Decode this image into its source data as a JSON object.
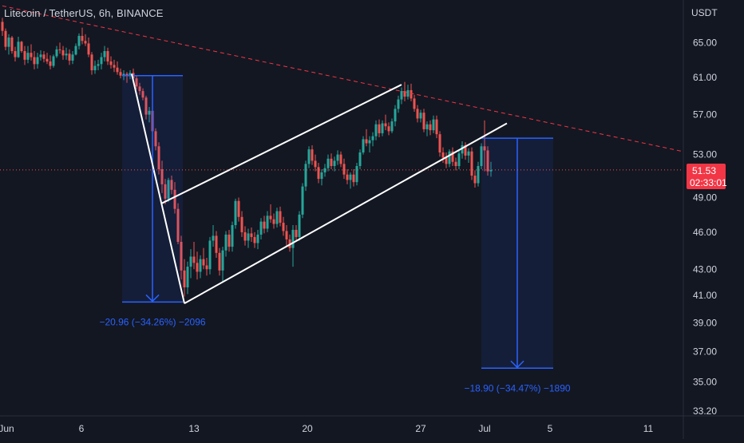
{
  "header": {
    "title": "Litecoin / TetherUS, 6h, BINANCE",
    "currency": "USDT"
  },
  "price_badge": {
    "price": "51.53",
    "countdown": "02:33:01",
    "color": "#f23645"
  },
  "colors": {
    "background": "#131722",
    "up": "#26a69a",
    "down": "#ef5350",
    "measure": "#2962ff",
    "pattern": "#ffffff",
    "resistance": "#f23645",
    "axis_text": "#d1d4dc"
  },
  "chart_data": {
    "type": "candlestick",
    "symbol": "LTCUSDT",
    "interval": "6h",
    "exchange": "BINANCE",
    "y_axis": {
      "scale": "log",
      "ticks": [
        "65.00",
        "61.00",
        "57.00",
        "53.00",
        "49.00",
        "46.00",
        "43.00",
        "41.00",
        "39.00",
        "37.00",
        "35.00",
        "33.20"
      ],
      "range": [
        32.8,
        70
      ]
    },
    "x_axis": {
      "ticks": [
        "Jun",
        "6",
        "13",
        "20",
        "27",
        "Jul",
        "5",
        "11"
      ]
    },
    "last_price": 51.53,
    "resistance_line": {
      "from": [
        0,
        69.5
      ],
      "to": [
        213,
        53.3
      ],
      "style": "dashed"
    },
    "channel": {
      "upper": {
        "from": [
          50,
          48.5
        ],
        "to": [
          125,
          60.2
        ]
      },
      "lower": {
        "from": [
          57,
          40.4
        ],
        "to": [
          158,
          56.1
        ]
      }
    },
    "left_leg": {
      "from": [
        40.5,
        61.4
      ],
      "to": [
        57,
        40.4
      ]
    },
    "measures": [
      {
        "label": "−20.96 (−34.26%) −2096",
        "from_x": 37.5,
        "to_x": 56.5,
        "top": 61.2,
        "bottom": 40.5
      },
      {
        "label": "−18.90 (−34.47%) −1890",
        "from_x": 150,
        "to_x": 172.5,
        "top": 54.6,
        "bottom": 35.9
      }
    ],
    "candles": [
      [
        67.5,
        68.0,
        65.8,
        66.4
      ],
      [
        66.4,
        66.7,
        64.1,
        64.5
      ],
      [
        64.5,
        66.0,
        63.6,
        65.6
      ],
      [
        65.6,
        65.8,
        63.7,
        64.0
      ],
      [
        64.0,
        64.5,
        62.8,
        63.3
      ],
      [
        63.3,
        65.7,
        63.2,
        65.1
      ],
      [
        65.1,
        65.2,
        63.8,
        64.0
      ],
      [
        64.0,
        64.6,
        62.4,
        63.0
      ],
      [
        63.0,
        64.6,
        62.6,
        63.8
      ],
      [
        63.8,
        64.8,
        62.9,
        63.3
      ],
      [
        63.3,
        64.0,
        61.9,
        62.5
      ],
      [
        62.5,
        63.8,
        62.0,
        63.3
      ],
      [
        63.3,
        64.1,
        62.9,
        63.6
      ],
      [
        63.6,
        64.0,
        62.7,
        63.1
      ],
      [
        63.1,
        63.8,
        62.5,
        62.8
      ],
      [
        62.8,
        63.5,
        61.9,
        62.3
      ],
      [
        62.3,
        63.6,
        62.1,
        63.4
      ],
      [
        63.4,
        64.6,
        63.2,
        64.2
      ],
      [
        64.2,
        65.0,
        63.7,
        64.1
      ],
      [
        64.1,
        64.6,
        63.0,
        63.5
      ],
      [
        63.5,
        64.4,
        63.0,
        63.7
      ],
      [
        63.7,
        64.2,
        62.4,
        62.9
      ],
      [
        62.9,
        64.0,
        62.5,
        63.6
      ],
      [
        63.6,
        64.9,
        63.5,
        64.6
      ],
      [
        64.6,
        66.1,
        64.2,
        65.8
      ],
      [
        65.8,
        66.8,
        64.8,
        65.2
      ],
      [
        65.2,
        66.0,
        64.6,
        64.9
      ],
      [
        64.9,
        65.6,
        63.3,
        63.6
      ],
      [
        63.6,
        63.9,
        61.3,
        61.8
      ],
      [
        61.8,
        62.9,
        61.4,
        62.3
      ],
      [
        62.3,
        63.0,
        61.8,
        62.5
      ],
      [
        62.5,
        63.8,
        61.9,
        63.3
      ],
      [
        63.3,
        64.6,
        62.8,
        64.0
      ],
      [
        64.0,
        64.4,
        62.4,
        62.8
      ],
      [
        62.8,
        63.4,
        62.0,
        62.4
      ],
      [
        62.4,
        63.0,
        61.6,
        62.1
      ],
      [
        62.1,
        62.8,
        61.3,
        61.6
      ],
      [
        61.6,
        62.0,
        60.9,
        61.2
      ],
      [
        61.2,
        61.8,
        60.7,
        61.4
      ],
      [
        61.4,
        61.6,
        60.4,
        61.2
      ],
      [
        61.2,
        61.8,
        60.8,
        61.5
      ],
      [
        61.5,
        62.0,
        60.7,
        60.9
      ],
      [
        60.9,
        61.2,
        59.7,
        60.0
      ],
      [
        60.0,
        60.4,
        59.1,
        59.5
      ],
      [
        59.5,
        59.8,
        58.5,
        58.8
      ],
      [
        58.8,
        59.0,
        56.5,
        57.0
      ],
      [
        57.0,
        57.8,
        56.2,
        57.4
      ],
      [
        57.4,
        57.9,
        54.9,
        55.3
      ],
      [
        55.3,
        55.6,
        53.4,
        53.8
      ],
      [
        53.8,
        54.2,
        51.1,
        51.6
      ],
      [
        51.6,
        52.4,
        49.4,
        50.2
      ],
      [
        50.2,
        50.7,
        48.4,
        48.9
      ],
      [
        48.9,
        50.8,
        48.6,
        50.6
      ],
      [
        50.6,
        51.0,
        49.3,
        49.7
      ],
      [
        49.7,
        50.4,
        47.6,
        48.0
      ],
      [
        48.0,
        48.5,
        45.0,
        45.2
      ],
      [
        45.2,
        45.7,
        42.2,
        42.9
      ],
      [
        42.9,
        43.8,
        40.9,
        41.6
      ],
      [
        41.6,
        43.6,
        41.1,
        43.2
      ],
      [
        43.2,
        44.6,
        42.3,
        44.0
      ],
      [
        44.0,
        45.2,
        43.0,
        43.5
      ],
      [
        43.5,
        44.4,
        42.2,
        42.8
      ],
      [
        42.8,
        44.1,
        42.3,
        43.8
      ],
      [
        43.8,
        44.7,
        43.0,
        43.3
      ],
      [
        43.3,
        43.9,
        42.5,
        43.0
      ],
      [
        43.0,
        45.6,
        42.6,
        45.3
      ],
      [
        45.3,
        46.6,
        44.8,
        45.7
      ],
      [
        45.7,
        46.1,
        43.9,
        44.3
      ],
      [
        44.3,
        44.7,
        42.5,
        42.9
      ],
      [
        42.9,
        44.8,
        42.0,
        44.5
      ],
      [
        44.5,
        46.1,
        44.0,
        45.8
      ],
      [
        45.8,
        46.2,
        44.4,
        44.8
      ],
      [
        44.8,
        46.9,
        44.4,
        46.6
      ],
      [
        46.6,
        48.9,
        46.3,
        48.7
      ],
      [
        48.7,
        49.0,
        46.9,
        47.3
      ],
      [
        47.3,
        47.8,
        45.6,
        46.0
      ],
      [
        46.0,
        46.5,
        44.9,
        45.3
      ],
      [
        45.3,
        46.3,
        44.7,
        45.9
      ],
      [
        45.9,
        46.4,
        45.2,
        45.6
      ],
      [
        45.6,
        46.0,
        44.7,
        45.1
      ],
      [
        45.1,
        46.2,
        44.6,
        45.8
      ],
      [
        45.8,
        47.2,
        45.4,
        46.9
      ],
      [
        46.9,
        47.4,
        45.9,
        46.3
      ],
      [
        46.3,
        47.8,
        46.0,
        47.4
      ],
      [
        47.4,
        48.4,
        46.8,
        47.1
      ],
      [
        47.1,
        47.6,
        46.3,
        46.7
      ],
      [
        46.7,
        48.1,
        46.4,
        47.8
      ],
      [
        47.8,
        48.2,
        46.5,
        46.8
      ],
      [
        46.8,
        47.3,
        45.7,
        46.1
      ],
      [
        46.1,
        46.6,
        44.9,
        45.4
      ],
      [
        45.4,
        45.8,
        44.4,
        44.7
      ],
      [
        44.7,
        46.6,
        43.2,
        46.2
      ],
      [
        46.2,
        46.6,
        45.2,
        45.6
      ],
      [
        45.6,
        47.8,
        45.3,
        47.5
      ],
      [
        47.5,
        50.3,
        47.2,
        50.0
      ],
      [
        50.0,
        52.4,
        49.6,
        52.1
      ],
      [
        52.1,
        53.8,
        51.7,
        53.5
      ],
      [
        53.5,
        53.9,
        52.0,
        52.4
      ],
      [
        52.4,
        53.0,
        51.4,
        51.8
      ],
      [
        51.8,
        52.2,
        50.3,
        50.7
      ],
      [
        50.7,
        51.6,
        50.1,
        51.3
      ],
      [
        51.3,
        52.1,
        50.9,
        51.7
      ],
      [
        51.7,
        53.0,
        51.4,
        52.6
      ],
      [
        52.6,
        53.1,
        51.6,
        51.9
      ],
      [
        51.9,
        52.8,
        51.4,
        52.4
      ],
      [
        52.4,
        53.4,
        52.0,
        53.0
      ],
      [
        53.0,
        53.3,
        51.8,
        52.1
      ],
      [
        52.1,
        52.6,
        50.7,
        51.1
      ],
      [
        51.1,
        51.6,
        50.2,
        50.6
      ],
      [
        50.6,
        51.3,
        49.8,
        51.1
      ],
      [
        51.1,
        51.6,
        50.0,
        50.4
      ],
      [
        50.4,
        52.2,
        50.1,
        51.9
      ],
      [
        51.9,
        53.5,
        51.6,
        53.2
      ],
      [
        53.2,
        54.8,
        53.0,
        54.5
      ],
      [
        54.5,
        55.5,
        53.8,
        54.1
      ],
      [
        54.1,
        54.8,
        53.2,
        54.4
      ],
      [
        54.4,
        55.2,
        53.8,
        54.8
      ],
      [
        54.8,
        56.4,
        54.4,
        56.0
      ],
      [
        56.0,
        56.5,
        54.7,
        55.1
      ],
      [
        55.1,
        56.4,
        54.8,
        56.1
      ],
      [
        56.1,
        57.0,
        55.4,
        55.8
      ],
      [
        55.8,
        56.2,
        54.9,
        55.3
      ],
      [
        55.3,
        56.6,
        55.1,
        56.3
      ],
      [
        56.3,
        58.0,
        55.8,
        57.6
      ],
      [
        57.6,
        59.0,
        57.2,
        58.6
      ],
      [
        58.6,
        59.9,
        58.1,
        59.5
      ],
      [
        59.5,
        60.5,
        58.4,
        58.9
      ],
      [
        58.9,
        60.2,
        58.6,
        59.6
      ],
      [
        59.6,
        60.3,
        58.4,
        58.7
      ],
      [
        58.7,
        59.1,
        57.3,
        57.6
      ],
      [
        57.6,
        58.0,
        56.2,
        56.6
      ],
      [
        56.6,
        57.5,
        56.2,
        57.2
      ],
      [
        57.2,
        57.6,
        55.2,
        55.5
      ],
      [
        55.5,
        56.3,
        54.8,
        56.0
      ],
      [
        56.0,
        56.4,
        54.9,
        55.4
      ],
      [
        55.4,
        56.9,
        55.1,
        56.5
      ],
      [
        56.5,
        56.9,
        54.6,
        55.0
      ],
      [
        55.0,
        55.3,
        52.8,
        53.2
      ],
      [
        53.2,
        53.7,
        52.2,
        52.7
      ],
      [
        52.7,
        53.2,
        51.7,
        52.1
      ],
      [
        52.1,
        53.5,
        51.8,
        53.3
      ],
      [
        53.3,
        53.7,
        51.9,
        52.3
      ],
      [
        52.3,
        52.7,
        51.5,
        51.9
      ],
      [
        51.9,
        53.4,
        51.6,
        53.1
      ],
      [
        53.1,
        54.3,
        52.6,
        53.9
      ],
      [
        53.9,
        54.2,
        52.5,
        52.9
      ],
      [
        52.9,
        53.6,
        52.2,
        53.3
      ],
      [
        53.3,
        53.7,
        50.6,
        51.0
      ],
      [
        51.0,
        51.5,
        49.9,
        50.3
      ],
      [
        50.3,
        52.3,
        50.0,
        51.9
      ],
      [
        51.9,
        54.1,
        51.6,
        53.8
      ],
      [
        53.8,
        56.4,
        51.4,
        53.4
      ],
      [
        53.4,
        53.8,
        51.0,
        51.4
      ],
      [
        51.4,
        52.3,
        50.9,
        51.53
      ]
    ]
  }
}
